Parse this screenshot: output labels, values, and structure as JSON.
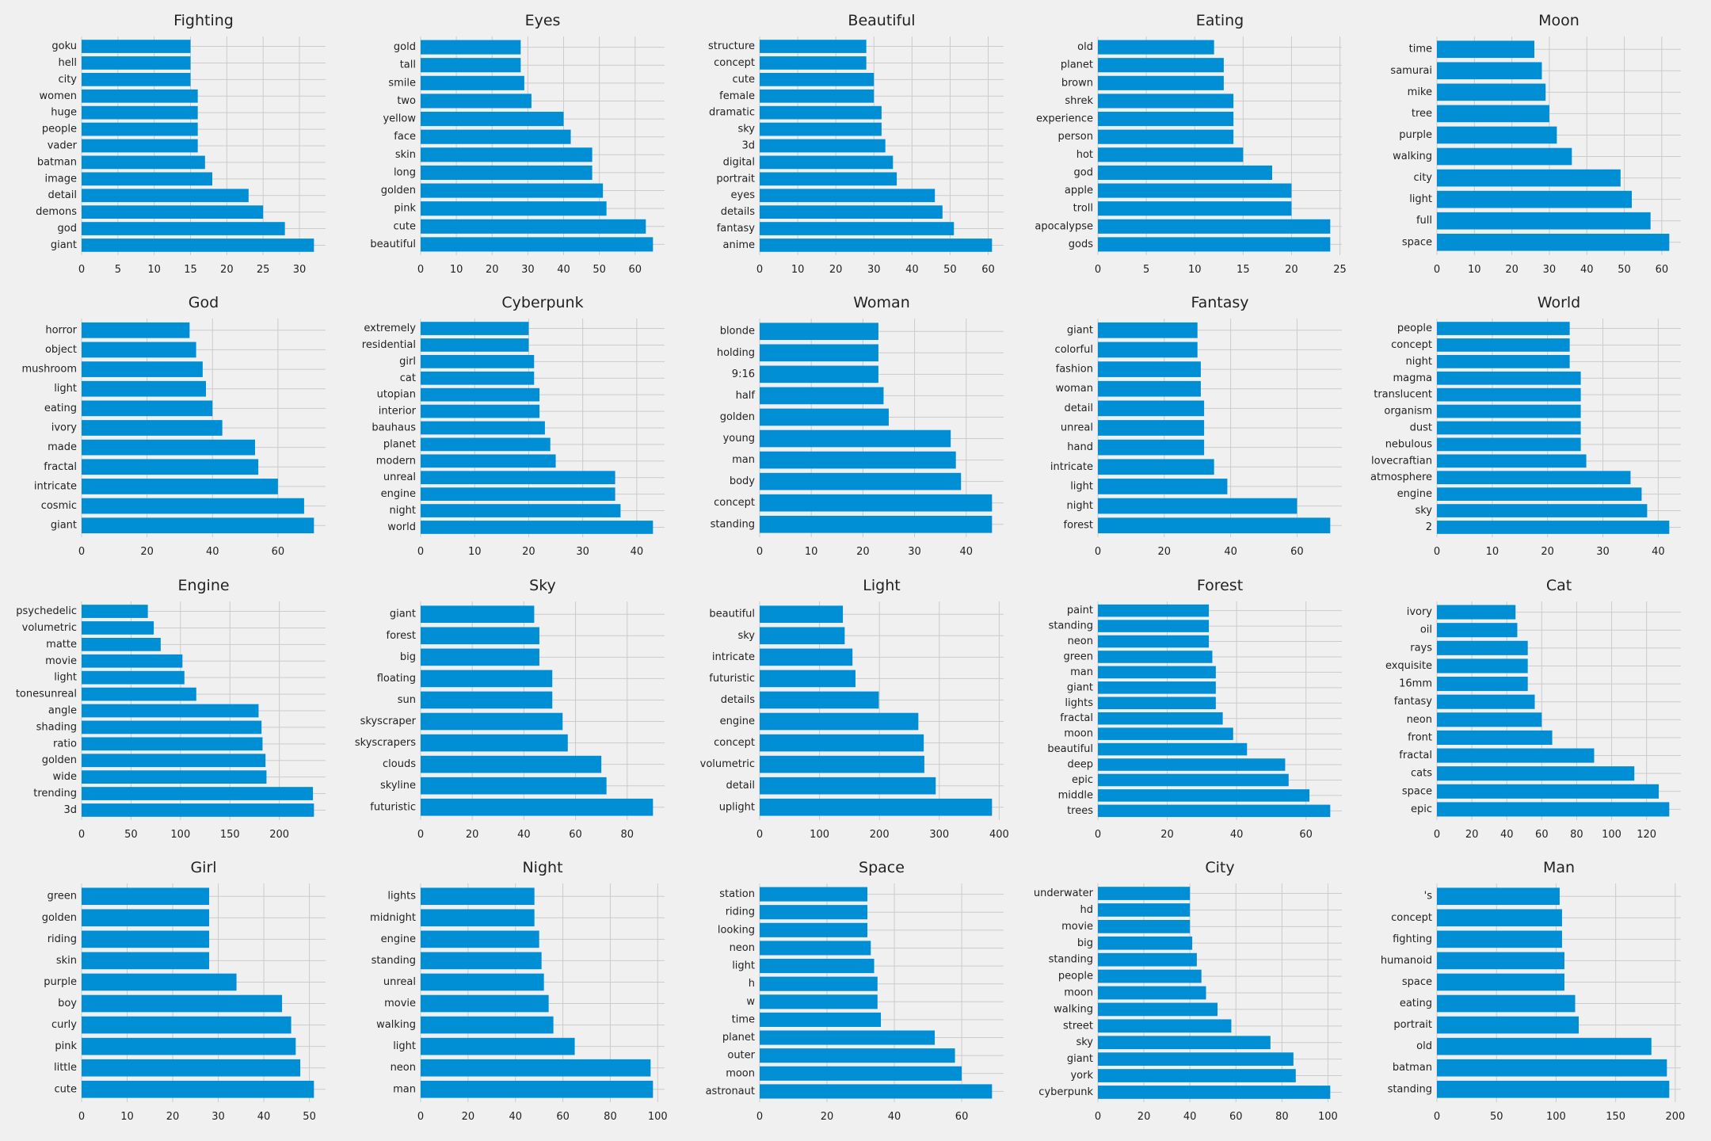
{
  "style": {
    "background": "#f0f0f0",
    "bar_color": "#008fd5",
    "grid_color": "#cbcbcb",
    "text_color": "#222222"
  },
  "chart_data": [
    {
      "type": "bar",
      "orientation": "horizontal",
      "title": "Fighting",
      "grid": true,
      "categories": [
        "giant",
        "god",
        "demons",
        "detail",
        "image",
        "batman",
        "vader",
        "people",
        "huge",
        "women",
        "city",
        "hell",
        "goku"
      ],
      "values": [
        32,
        28,
        25,
        23,
        18,
        17,
        16,
        16,
        16,
        16,
        15,
        15,
        15
      ],
      "xticks": [
        0,
        5,
        10,
        15,
        20,
        25,
        30
      ],
      "xlim": [
        0,
        33.6
      ]
    },
    {
      "type": "bar",
      "orientation": "horizontal",
      "title": "Eyes",
      "grid": true,
      "categories": [
        "beautiful",
        "cute",
        "pink",
        "golden",
        "long",
        "skin",
        "face",
        "yellow",
        "two",
        "smile",
        "tall",
        "gold"
      ],
      "values": [
        65,
        63,
        52,
        51,
        48,
        48,
        42,
        40,
        31,
        29,
        28,
        28
      ],
      "xticks": [
        0,
        10,
        20,
        30,
        40,
        50,
        60
      ],
      "xlim": [
        0,
        68.25
      ]
    },
    {
      "type": "bar",
      "orientation": "horizontal",
      "title": "Beautiful",
      "grid": true,
      "categories": [
        "anime",
        "fantasy",
        "details",
        "eyes",
        "portrait",
        "digital",
        "3d",
        "sky",
        "dramatic",
        "female",
        "cute",
        "concept",
        "structure"
      ],
      "values": [
        61,
        51,
        48,
        46,
        36,
        35,
        33,
        32,
        32,
        30,
        30,
        28,
        28
      ],
      "xticks": [
        0,
        10,
        20,
        30,
        40,
        50,
        60
      ],
      "xlim": [
        0,
        64.05
      ]
    },
    {
      "type": "bar",
      "orientation": "horizontal",
      "title": "Eating",
      "grid": true,
      "categories": [
        "gods",
        "apocalypse",
        "troll",
        "apple",
        "god",
        "hot",
        "person",
        "experience",
        "shrek",
        "brown",
        "planet",
        "old"
      ],
      "values": [
        24,
        24,
        20,
        20,
        18,
        15,
        14,
        14,
        14,
        13,
        13,
        12
      ],
      "xticks": [
        0,
        5,
        10,
        15,
        20,
        25
      ],
      "xlim": [
        0,
        25.2
      ]
    },
    {
      "type": "bar",
      "orientation": "horizontal",
      "title": "Moon",
      "grid": true,
      "categories": [
        "space",
        "full",
        "light",
        "city",
        "walking",
        "purple",
        "tree",
        "mike",
        "samurai",
        "time"
      ],
      "values": [
        62,
        57,
        52,
        49,
        36,
        32,
        30,
        29,
        28,
        26
      ],
      "xticks": [
        0,
        10,
        20,
        30,
        40,
        50,
        60
      ],
      "xlim": [
        0,
        65.1
      ]
    },
    {
      "type": "bar",
      "orientation": "horizontal",
      "title": "God",
      "grid": true,
      "categories": [
        "giant",
        "cosmic",
        "intricate",
        "fractal",
        "made",
        "ivory",
        "eating",
        "light",
        "mushroom",
        "object",
        "horror"
      ],
      "values": [
        71,
        68,
        60,
        54,
        53,
        43,
        40,
        38,
        37,
        35,
        33
      ],
      "xticks": [
        0,
        20,
        40,
        60
      ],
      "xlim": [
        0,
        74.55
      ]
    },
    {
      "type": "bar",
      "orientation": "horizontal",
      "title": "Cyberpunk",
      "grid": true,
      "categories": [
        "world",
        "night",
        "engine",
        "unreal",
        "modern",
        "planet",
        "bauhaus",
        "interior",
        "utopian",
        "cat",
        "girl",
        "residential",
        "extremely"
      ],
      "values": [
        43,
        37,
        36,
        36,
        25,
        24,
        23,
        22,
        22,
        21,
        21,
        20,
        20
      ],
      "xticks": [
        0,
        10,
        20,
        30,
        40
      ],
      "xlim": [
        0,
        45.15
      ]
    },
    {
      "type": "bar",
      "orientation": "horizontal",
      "title": "Woman",
      "grid": true,
      "categories": [
        "standing",
        "concept",
        "body",
        "man",
        "young",
        "golden",
        "half",
        "9:16",
        "holding",
        "blonde"
      ],
      "values": [
        45,
        45,
        39,
        38,
        37,
        25,
        24,
        23,
        23,
        23
      ],
      "xticks": [
        0,
        10,
        20,
        30,
        40
      ],
      "xlim": [
        0,
        47.25
      ]
    },
    {
      "type": "bar",
      "orientation": "horizontal",
      "title": "Fantasy",
      "grid": true,
      "categories": [
        "forest",
        "night",
        "light",
        "intricate",
        "hand",
        "unreal",
        "detail",
        "woman",
        "fashion",
        "colorful",
        "giant"
      ],
      "values": [
        70,
        60,
        39,
        35,
        32,
        32,
        32,
        31,
        31,
        30,
        30
      ],
      "xticks": [
        0,
        20,
        40,
        60
      ],
      "xlim": [
        0,
        73.5
      ]
    },
    {
      "type": "bar",
      "orientation": "horizontal",
      "title": "World",
      "grid": true,
      "categories": [
        "2",
        "sky",
        "engine",
        "atmosphere",
        "lovecraftian",
        "nebulous",
        "dust",
        "organism",
        "translucent",
        "magma",
        "night",
        "concept",
        "people"
      ],
      "values": [
        42,
        38,
        37,
        35,
        27,
        26,
        26,
        26,
        26,
        26,
        24,
        24,
        24
      ],
      "xticks": [
        0,
        10,
        20,
        30,
        40
      ],
      "xlim": [
        0,
        44.1
      ]
    },
    {
      "type": "bar",
      "orientation": "horizontal",
      "title": "Engine",
      "grid": true,
      "categories": [
        "3d",
        "trending",
        "wide",
        "golden",
        "ratio",
        "shading",
        "angle",
        "tonesunreal",
        "light",
        "movie",
        "matte",
        "volumetric",
        "psychedelic"
      ],
      "values": [
        235,
        234,
        187,
        186,
        183,
        182,
        179,
        116,
        104,
        102,
        80,
        73,
        67
      ],
      "xticks": [
        0,
        50,
        100,
        150,
        200
      ],
      "xlim": [
        0,
        246.75
      ]
    },
    {
      "type": "bar",
      "orientation": "horizontal",
      "title": "Sky",
      "grid": true,
      "categories": [
        "futuristic",
        "skyline",
        "clouds",
        "skyscrapers",
        "skyscraper",
        "sun",
        "floating",
        "big",
        "forest",
        "giant"
      ],
      "values": [
        90,
        72,
        70,
        57,
        55,
        51,
        51,
        46,
        46,
        44
      ],
      "xticks": [
        0,
        20,
        40,
        60,
        80
      ],
      "xlim": [
        0,
        94.5
      ]
    },
    {
      "type": "bar",
      "orientation": "horizontal",
      "title": "Light",
      "grid": true,
      "categories": [
        "uplight",
        "detail",
        "volumetric",
        "concept",
        "engine",
        "details",
        "futuristic",
        "intricate",
        "sky",
        "beautiful"
      ],
      "values": [
        388,
        294,
        275,
        274,
        265,
        199,
        160,
        155,
        142,
        139
      ],
      "xticks": [
        0,
        100,
        200,
        300,
        400
      ],
      "xlim": [
        0,
        407.4
      ]
    },
    {
      "type": "bar",
      "orientation": "horizontal",
      "title": "Forest",
      "grid": true,
      "categories": [
        "trees",
        "middle",
        "epic",
        "deep",
        "beautiful",
        "moon",
        "fractal",
        "lights",
        "giant",
        "man",
        "green",
        "neon",
        "standing",
        "paint"
      ],
      "values": [
        67,
        61,
        55,
        54,
        43,
        39,
        36,
        34,
        34,
        34,
        33,
        32,
        32,
        32
      ],
      "xticks": [
        0,
        20,
        40,
        60
      ],
      "xlim": [
        0,
        70.35
      ]
    },
    {
      "type": "bar",
      "orientation": "horizontal",
      "title": "Cat",
      "grid": true,
      "categories": [
        "epic",
        "space",
        "cats",
        "fractal",
        "front",
        "neon",
        "fantasy",
        "16mm",
        "exquisite",
        "rays",
        "oil",
        "ivory"
      ],
      "values": [
        133,
        127,
        113,
        90,
        66,
        60,
        56,
        52,
        52,
        52,
        46,
        45
      ],
      "xticks": [
        0,
        20,
        40,
        60,
        80,
        100,
        120
      ],
      "xlim": [
        0,
        139.65
      ]
    },
    {
      "type": "bar",
      "orientation": "horizontal",
      "title": "Girl",
      "grid": true,
      "categories": [
        "cute",
        "little",
        "pink",
        "curly",
        "boy",
        "purple",
        "skin",
        "riding",
        "golden",
        "green"
      ],
      "values": [
        51,
        48,
        47,
        46,
        44,
        34,
        28,
        28,
        28,
        28
      ],
      "xticks": [
        0,
        10,
        20,
        30,
        40,
        50
      ],
      "xlim": [
        0,
        53.55
      ]
    },
    {
      "type": "bar",
      "orientation": "horizontal",
      "title": "Night",
      "grid": true,
      "categories": [
        "man",
        "neon",
        "light",
        "walking",
        "movie",
        "unreal",
        "standing",
        "engine",
        "midnight",
        "lights"
      ],
      "values": [
        98,
        97,
        65,
        56,
        54,
        52,
        51,
        50,
        48,
        48
      ],
      "xticks": [
        0,
        20,
        40,
        60,
        80,
        100
      ],
      "xlim": [
        0,
        102.9
      ]
    },
    {
      "type": "bar",
      "orientation": "horizontal",
      "title": "Space",
      "grid": true,
      "categories": [
        "astronaut",
        "moon",
        "outer",
        "planet",
        "time",
        "w",
        "h",
        "light",
        "neon",
        "looking",
        "riding",
        "station"
      ],
      "values": [
        69,
        60,
        58,
        52,
        36,
        35,
        35,
        34,
        33,
        32,
        32,
        32
      ],
      "xticks": [
        0,
        20,
        40,
        60
      ],
      "xlim": [
        0,
        72.45
      ]
    },
    {
      "type": "bar",
      "orientation": "horizontal",
      "title": "City",
      "grid": true,
      "categories": [
        "cyberpunk",
        "york",
        "giant",
        "sky",
        "street",
        "walking",
        "moon",
        "people",
        "standing",
        "big",
        "movie",
        "hd",
        "underwater"
      ],
      "values": [
        101,
        86,
        85,
        75,
        58,
        52,
        47,
        45,
        43,
        41,
        40,
        40,
        40
      ],
      "xticks": [
        0,
        20,
        40,
        60,
        80,
        100
      ],
      "xlim": [
        0,
        106.05
      ]
    },
    {
      "type": "bar",
      "orientation": "horizontal",
      "title": "Man",
      "grid": true,
      "categories": [
        "standing",
        "batman",
        "old",
        "portrait",
        "eating",
        "space",
        "humanoid",
        "fighting",
        "concept",
        "'s"
      ],
      "values": [
        195,
        193,
        180,
        119,
        116,
        107,
        107,
        105,
        105,
        103
      ],
      "xticks": [
        0,
        50,
        100,
        150,
        200
      ],
      "xlim": [
        0,
        204.75
      ]
    }
  ]
}
